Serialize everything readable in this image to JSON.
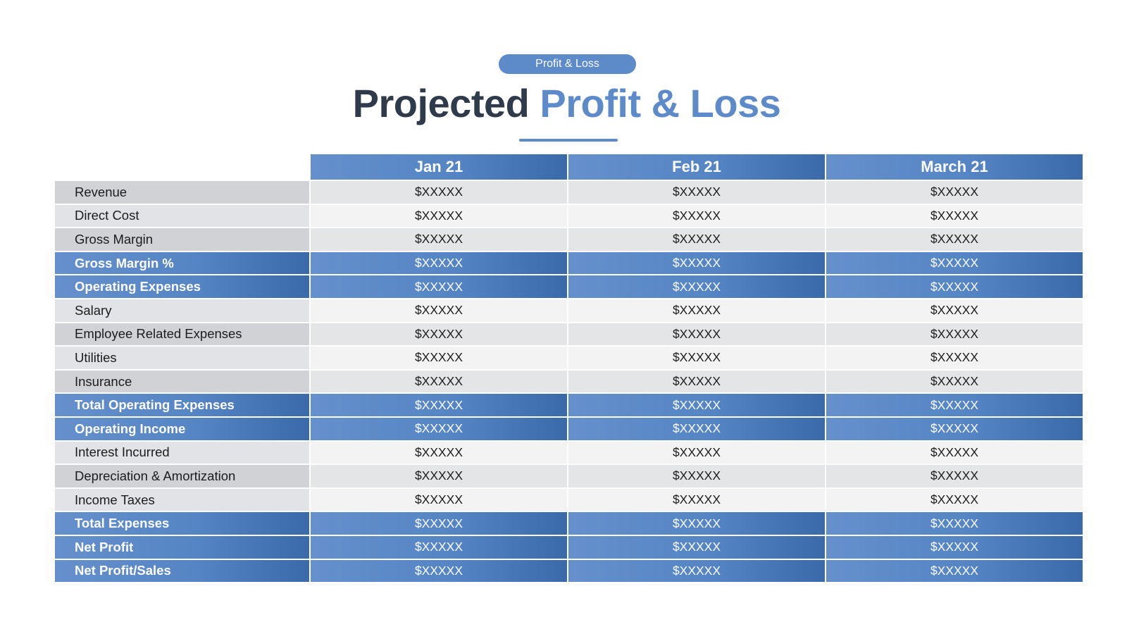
{
  "header": {
    "pill_label": "Profit & Loss",
    "title_dark": "Projected",
    "title_accent": "Profit & Loss"
  },
  "table": {
    "columns": [
      "Jan 21",
      "Feb 21",
      "March 21"
    ],
    "rows": [
      {
        "label": "Revenue",
        "values": [
          "$XXXXX",
          "$XXXXX",
          "$XXXXX"
        ],
        "highlight": false
      },
      {
        "label": "Direct Cost",
        "values": [
          "$XXXXX",
          "$XXXXX",
          "$XXXXX"
        ],
        "highlight": false
      },
      {
        "label": "Gross Margin",
        "values": [
          "$XXXXX",
          "$XXXXX",
          "$XXXXX"
        ],
        "highlight": false
      },
      {
        "label": "Gross Margin %",
        "values": [
          "$XXXXX",
          "$XXXXX",
          "$XXXXX"
        ],
        "highlight": true
      },
      {
        "label": "Operating Expenses",
        "values": [
          "$XXXXX",
          "$XXXXX",
          "$XXXXX"
        ],
        "highlight": true
      },
      {
        "label": "Salary",
        "values": [
          "$XXXXX",
          "$XXXXX",
          "$XXXXX"
        ],
        "highlight": false
      },
      {
        "label": "Employee Related Expenses",
        "values": [
          "$XXXXX",
          "$XXXXX",
          "$XXXXX"
        ],
        "highlight": false
      },
      {
        "label": "Utilities",
        "values": [
          "$XXXXX",
          "$XXXXX",
          "$XXXXX"
        ],
        "highlight": false
      },
      {
        "label": "Insurance",
        "values": [
          "$XXXXX",
          "$XXXXX",
          "$XXXXX"
        ],
        "highlight": false
      },
      {
        "label": "Total Operating Expenses",
        "values": [
          "$XXXXX",
          "$XXXXX",
          "$XXXXX"
        ],
        "highlight": true
      },
      {
        "label": "Operating Income",
        "values": [
          "$XXXXX",
          "$XXXXX",
          "$XXXXX"
        ],
        "highlight": true
      },
      {
        "label": "Interest Incurred",
        "values": [
          "$XXXXX",
          "$XXXXX",
          "$XXXXX"
        ],
        "highlight": false
      },
      {
        "label": "Depreciation & Amortization",
        "values": [
          "$XXXXX",
          "$XXXXX",
          "$XXXXX"
        ],
        "highlight": false
      },
      {
        "label": "Income Taxes",
        "values": [
          "$XXXXX",
          "$XXXXX",
          "$XXXXX"
        ],
        "highlight": false
      },
      {
        "label": "Total Expenses",
        "values": [
          "$XXXXX",
          "$XXXXX",
          "$XXXXX"
        ],
        "highlight": true
      },
      {
        "label": "Net Profit",
        "values": [
          "$XXXXX",
          "$XXXXX",
          "$XXXXX"
        ],
        "highlight": true
      },
      {
        "label": "Net Profit/Sales",
        "values": [
          "$XXXXX",
          "$XXXXX",
          "$XXXXX"
        ],
        "highlight": true
      }
    ]
  },
  "colors": {
    "accent": "#5d8ac8",
    "accent_dark": "#3a6aaa",
    "title_dark": "#2f3a4a",
    "row_gray": "#e4e5e7",
    "row_light": "#f3f3f4"
  }
}
